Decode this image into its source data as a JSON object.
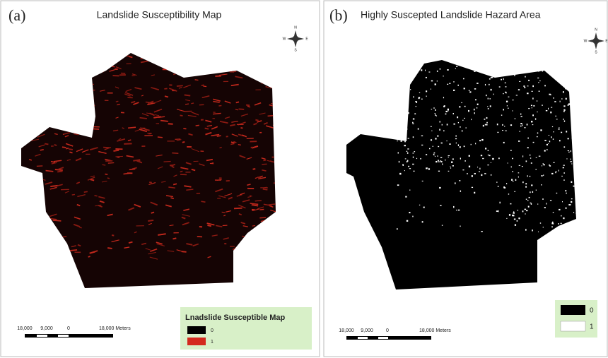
{
  "panels": [
    {
      "label": "(a)",
      "title": "Landslide Susceptibility Map",
      "compass": {
        "n": "N",
        "s": "S",
        "e": "E",
        "w": "W"
      },
      "scale": {
        "labels": [
          "18,000",
          "9,000",
          "0",
          "18,000 Meters"
        ]
      },
      "legend": {
        "title": "Lnadslide Susceptible Map",
        "items": [
          "0",
          "1"
        ]
      }
    },
    {
      "label": "(b)",
      "title": "Highly Suscepted Landslide Hazard Area",
      "compass": {
        "n": "N",
        "s": "S",
        "e": "E",
        "w": "W"
      },
      "scale": {
        "labels": [
          "18,000",
          "9,000",
          "0",
          "18,000 Meters"
        ]
      },
      "legend": {
        "items": [
          "0",
          "1"
        ]
      }
    }
  ]
}
